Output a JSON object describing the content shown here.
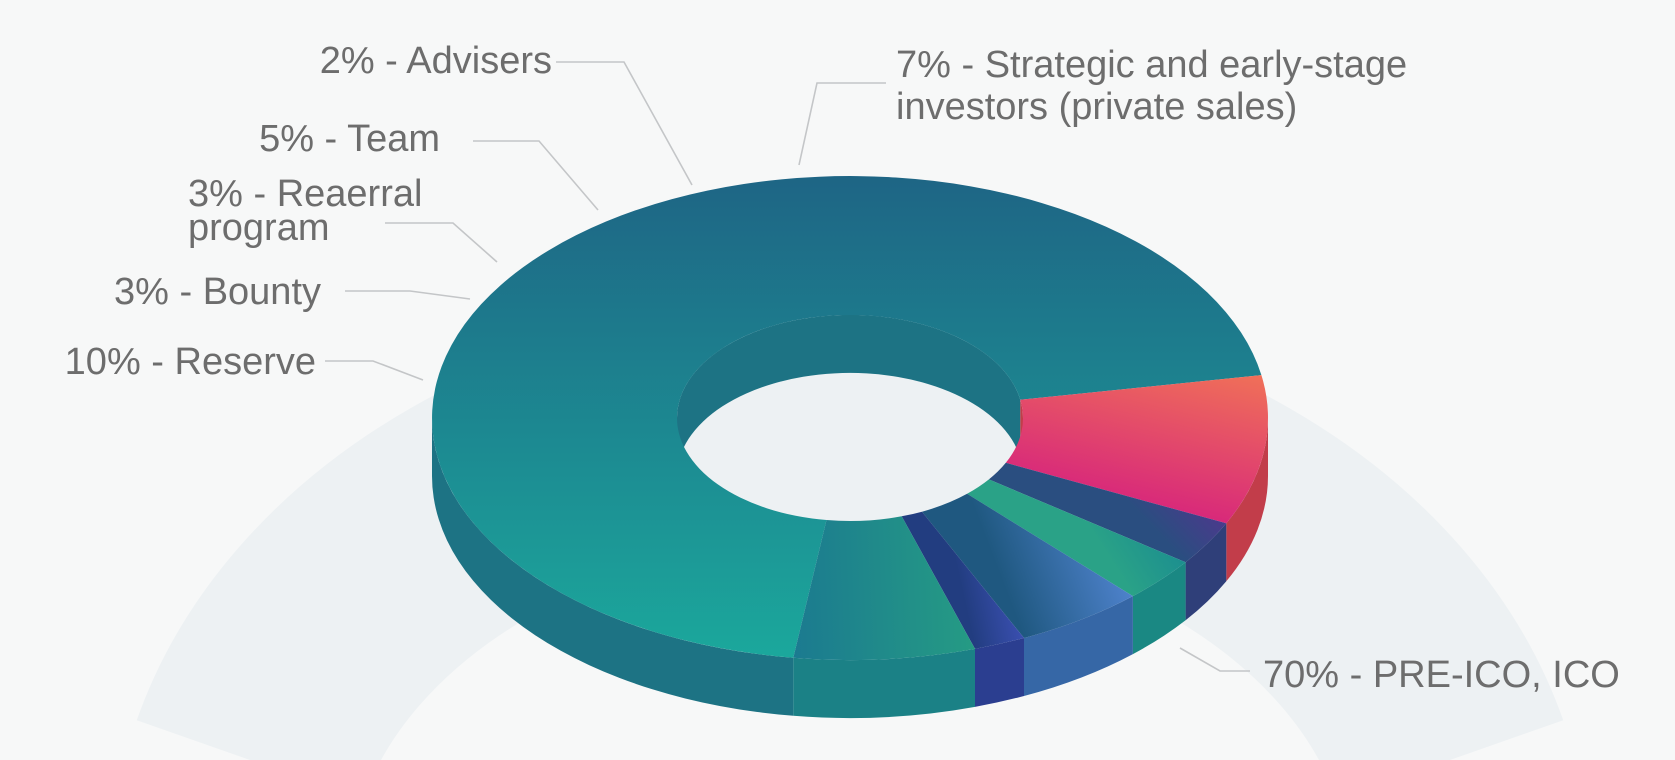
{
  "chart_data": {
    "type": "pie",
    "style": "3d-donut",
    "legend": "none",
    "slices": [
      {
        "label_lines": [
          "70% - PRE-ICO, ICO"
        ],
        "value": 70,
        "color_light": "#1ba89c",
        "color_dark": "#1e6585",
        "side": "#1d7384"
      },
      {
        "label_lines": [
          "10% - Reserve"
        ],
        "value": 10,
        "color_light": "#f07058",
        "color_dark": "#d8297a",
        "side": "#c23d4a"
      },
      {
        "label_lines": [
          "3% - Bounty"
        ],
        "value": 3,
        "color_light": "#4a3a8c",
        "color_dark": "#2a4e80",
        "side": "#2f3f79"
      },
      {
        "label_lines": [
          "3% - Reaerral",
          "program"
        ],
        "value": 3,
        "color_light": "#1c8f8f",
        "color_dark": "#2aa287",
        "side": "#1a8883"
      },
      {
        "label_lines": [
          "5% - Team"
        ],
        "value": 5,
        "color_light": "#4e82cc",
        "color_dark": "#1f5880",
        "side": "#3667a6"
      },
      {
        "label_lines": [
          "2% - Advisers"
        ],
        "value": 2,
        "color_light": "#3a4fb0",
        "color_dark": "#223d80",
        "side": "#2b3e90"
      },
      {
        "label_lines": [
          "7% - Strategic and early-stage",
          "investors (private sales)"
        ],
        "value": 7,
        "color_light": "#259b84",
        "color_dark": "#1b7a90",
        "side": "#1b8186"
      }
    ]
  }
}
